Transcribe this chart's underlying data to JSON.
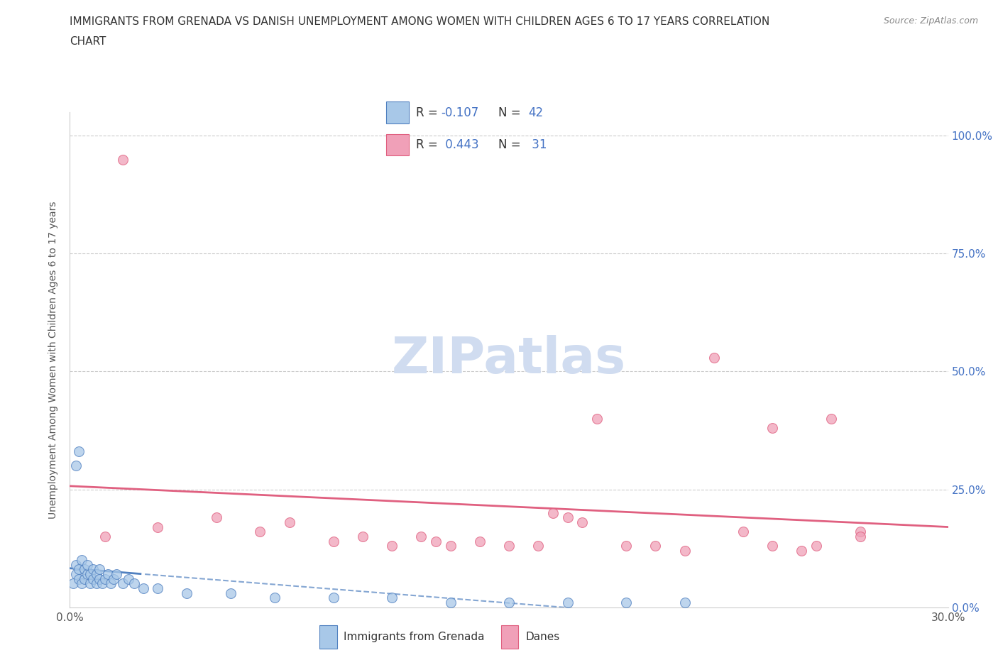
{
  "title_line1": "IMMIGRANTS FROM GRENADA VS DANISH UNEMPLOYMENT AMONG WOMEN WITH CHILDREN AGES 6 TO 17 YEARS CORRELATION",
  "title_line2": "CHART",
  "source": "Source: ZipAtlas.com",
  "ylabel_label": "Unemployment Among Women with Children Ages 6 to 17 years",
  "legend_label1": "Immigrants from Grenada",
  "legend_label2": "Danes",
  "r1": "-0.107",
  "n1": "42",
  "r2": "0.443",
  "n2": "31",
  "color_blue": "#A8C8E8",
  "color_pink": "#F0A0B8",
  "color_blue_line": "#5080C0",
  "color_pink_line": "#E06080",
  "background_color": "#FFFFFF",
  "xlim": [
    0.0,
    0.3
  ],
  "ylim": [
    0.0,
    1.05
  ],
  "blue_x": [
    0.001,
    0.002,
    0.002,
    0.003,
    0.003,
    0.004,
    0.004,
    0.005,
    0.005,
    0.006,
    0.006,
    0.007,
    0.007,
    0.008,
    0.008,
    0.009,
    0.009,
    0.01,
    0.01,
    0.011,
    0.012,
    0.013,
    0.014,
    0.015,
    0.016,
    0.018,
    0.02,
    0.022,
    0.025,
    0.03,
    0.04,
    0.055,
    0.07,
    0.09,
    0.11,
    0.13,
    0.15,
    0.17,
    0.19,
    0.21,
    0.002,
    0.003
  ],
  "blue_y": [
    0.05,
    0.07,
    0.09,
    0.06,
    0.08,
    0.05,
    0.1,
    0.06,
    0.08,
    0.07,
    0.09,
    0.05,
    0.07,
    0.06,
    0.08,
    0.05,
    0.07,
    0.06,
    0.08,
    0.05,
    0.06,
    0.07,
    0.05,
    0.06,
    0.07,
    0.05,
    0.06,
    0.05,
    0.04,
    0.04,
    0.03,
    0.03,
    0.02,
    0.02,
    0.02,
    0.01,
    0.01,
    0.01,
    0.01,
    0.01,
    0.3,
    0.33
  ],
  "pink_x": [
    0.018,
    0.03,
    0.05,
    0.065,
    0.075,
    0.09,
    0.1,
    0.11,
    0.12,
    0.125,
    0.13,
    0.14,
    0.15,
    0.16,
    0.165,
    0.17,
    0.175,
    0.18,
    0.19,
    0.2,
    0.21,
    0.22,
    0.23,
    0.24,
    0.25,
    0.26,
    0.27,
    0.24,
    0.255,
    0.27,
    0.012
  ],
  "pink_y": [
    0.95,
    0.17,
    0.19,
    0.16,
    0.18,
    0.14,
    0.15,
    0.13,
    0.15,
    0.14,
    0.13,
    0.14,
    0.13,
    0.13,
    0.2,
    0.19,
    0.18,
    0.4,
    0.13,
    0.13,
    0.12,
    0.53,
    0.16,
    0.13,
    0.12,
    0.4,
    0.16,
    0.38,
    0.13,
    0.15,
    0.15
  ],
  "watermark_text": "ZIPatlas",
  "watermark_color": "#D0DCF0"
}
